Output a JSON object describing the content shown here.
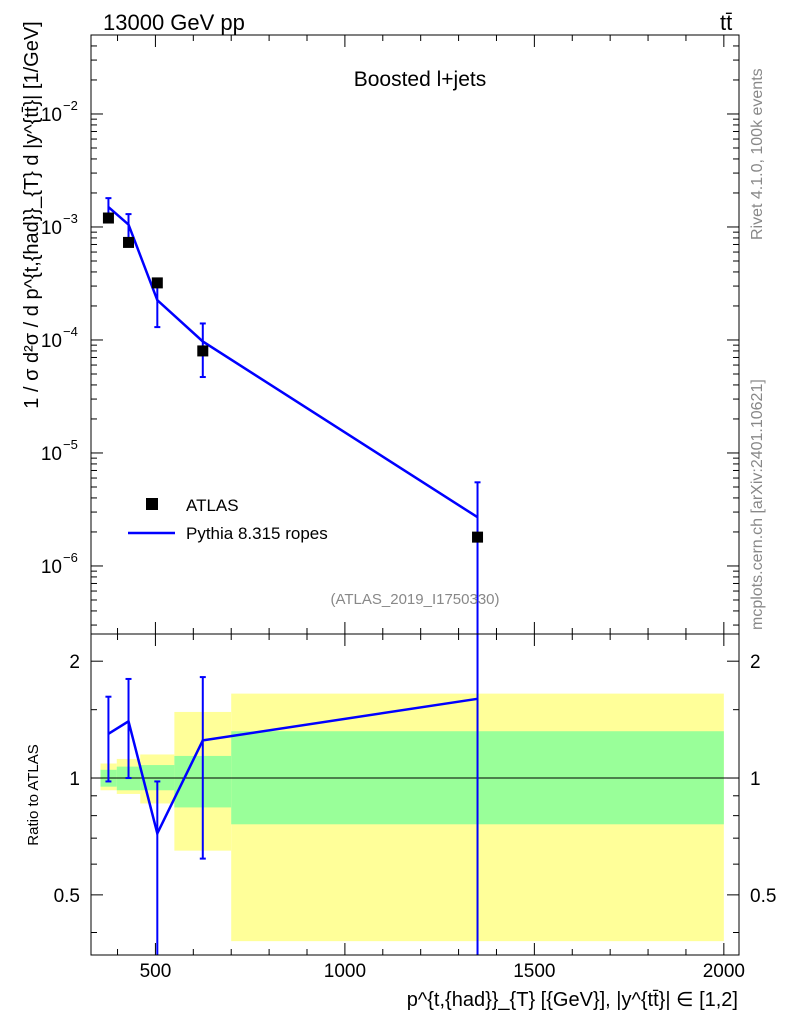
{
  "header": {
    "left": "13000 GeV pp",
    "right": "tt̄",
    "side_top": "Rivet 4.1.0,  100k events",
    "side_bottom": "mcplots.cern.ch [arXiv:2401.10621]"
  },
  "chart_data": {
    "type": "line",
    "title": "Boosted l+jets",
    "analysis": "(ATLAS_2019_I1750330)",
    "xlabel": "p^{t,{had}}_{T} [{GeV}], |y^{tt̄}| ∈ [1,2]",
    "ylabel": "1 / σ d²σ / d p^{t,{had}}_{T} d |y^{tt̄}| [1/GeV]",
    "ratio_ylabel": "Ratio to ATLAS",
    "xlim": [
      330,
      2040
    ],
    "ylim": [
      2.5e-07,
      0.05
    ],
    "ratio_ylim": [
      0.35,
      2.35
    ],
    "x_ticks": [
      500,
      1000,
      1500,
      2000
    ],
    "x_tick_labels": [
      "500",
      "1000",
      "1500",
      "2000"
    ],
    "y_ticks": [
      1e-06,
      1e-05,
      0.0001,
      0.001,
      0.01
    ],
    "y_tick_labels": [
      "10",
      "10",
      "10",
      "10",
      "10"
    ],
    "y_tick_exponents": [
      "−6",
      "−5",
      "−4",
      "−3",
      "−2"
    ],
    "ratio_ticks": [
      0.5,
      1,
      2
    ],
    "ratio_tick_labels": [
      "0.5",
      "1",
      "2"
    ],
    "bins": [
      {
        "lo": 355,
        "hi": 398,
        "center": 376,
        "data": 0.0012,
        "stat_lo": 0.95,
        "stat_hi": 1.05,
        "tot_lo": 0.93,
        "tot_hi": 1.09
      },
      {
        "lo": 398,
        "hi": 460,
        "center": 429,
        "data": 0.00073,
        "stat_lo": 0.93,
        "stat_hi": 1.07,
        "tot_lo": 0.91,
        "tot_hi": 1.12
      },
      {
        "lo": 460,
        "hi": 550,
        "center": 505,
        "data": 0.00032,
        "stat_lo": 0.93,
        "stat_hi": 1.08,
        "tot_lo": 0.86,
        "tot_hi": 1.15
      },
      {
        "lo": 550,
        "hi": 700,
        "center": 625,
        "data": 8e-05,
        "stat_lo": 0.84,
        "stat_hi": 1.14,
        "tot_lo": 0.65,
        "tot_hi": 1.48
      },
      {
        "lo": 700,
        "hi": 2000,
        "center": 1350,
        "data": 1.8e-06,
        "stat_lo": 0.76,
        "stat_hi": 1.32,
        "tot_lo": 0.38,
        "tot_hi": 1.65
      }
    ],
    "series": [
      {
        "name": "ATLAS",
        "type": "markers",
        "x": [
          376,
          429,
          505,
          625,
          1350
        ],
        "y": [
          0.0012,
          0.00073,
          0.00032,
          8e-05,
          1.8e-06
        ]
      },
      {
        "name": "Pythia 8.315 ropes",
        "type": "line",
        "color": "#0000ff",
        "x": [
          376,
          429,
          505,
          625,
          1350
        ],
        "y": [
          0.0015,
          0.00105,
          0.000225,
          9.7e-05,
          2.7e-06
        ],
        "err_lo": [
          0.0011,
          0.00075,
          0.00013,
          4.7e-05,
          0
        ],
        "err_hi": [
          0.0018,
          0.0013,
          0.00033,
          0.00014,
          5.5e-06
        ],
        "ratio": [
          1.3,
          1.4,
          0.72,
          1.25,
          1.6
        ],
        "ratio_err_lo": [
          0.98,
          1.0,
          0.34,
          0.62,
          0
        ],
        "ratio_err_hi": [
          1.62,
          1.8,
          0.98,
          1.82,
          2.4
        ]
      }
    ],
    "colors": {
      "stat_band": "#99ff99",
      "total_band": "#ffff99",
      "mc": "#0000ff",
      "data": "#000000"
    }
  }
}
